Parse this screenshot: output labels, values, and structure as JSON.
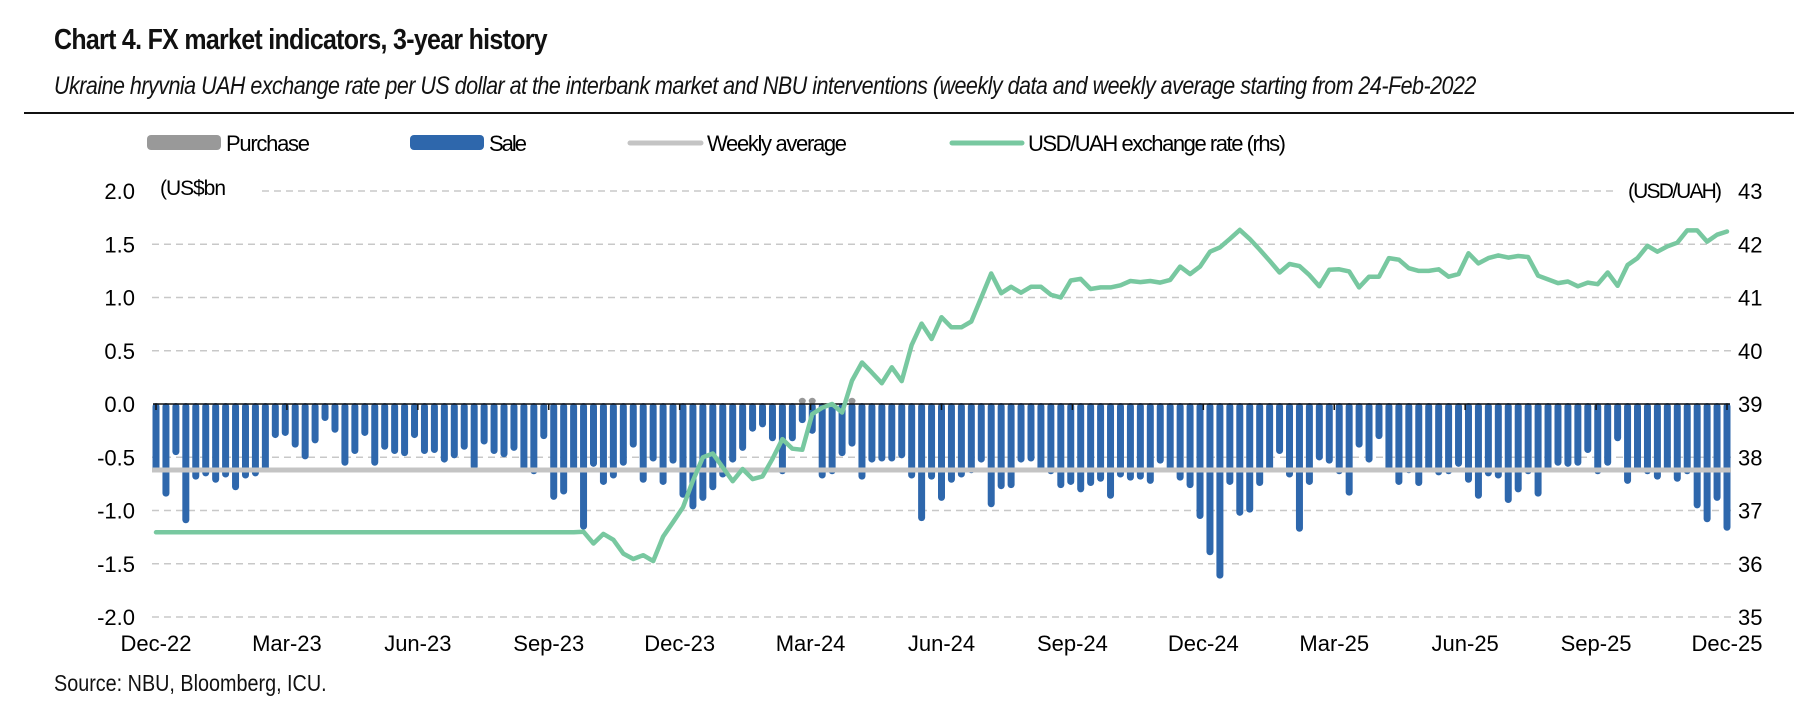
{
  "title": "Chart 4. FX market indicators, 3-year history",
  "subtitle": "Ukraine hryvnia UAH exchange rate per US dollar at the interbank market and NBU interventions (weekly data and weekly average starting from 24-Feb-2022",
  "source": "Source: NBU, Bloomberg, ICU.",
  "colors": {
    "purchase": "#999999",
    "sale": "#2E67AC",
    "weekly_average": "#C4C4C4",
    "rate": "#78C8A0",
    "grid": "#C8C8C8"
  },
  "chart_data": {
    "type": "bar",
    "title": "Chart 4. FX market indicators, 3-year history",
    "ylabel": "(US$bn",
    "y2label": "(USD/UAH)",
    "ylim": [
      -2.0,
      2.0
    ],
    "y2lim": [
      35,
      43
    ],
    "yticks": [
      "2.0",
      "1.5",
      "1.0",
      "0.5",
      "0.0",
      "-0.5",
      "-1.0",
      "-1.5",
      "-2.0"
    ],
    "y2ticks": [
      "43",
      "42",
      "41",
      "40",
      "39",
      "38",
      "37",
      "36",
      "35"
    ],
    "xtick_labels": [
      "Dec-22",
      "Mar-23",
      "Jun-23",
      "Sep-23",
      "Dec-23",
      "Mar-24",
      "Jun-24",
      "Sep-24",
      "Dec-24",
      "Mar-25",
      "Jun-25",
      "Sep-25",
      "Dec-25"
    ],
    "grid": true,
    "legend": {
      "position": "top",
      "entries": [
        "Purchase",
        "Sale",
        "Weekly average",
        "USD/UAH exchange rate (rhs)"
      ]
    },
    "weekly_average": -0.62,
    "series": [
      {
        "name": "Purchase",
        "type": "bar",
        "values_sparse": {
          "65": 0.03,
          "66": 0.03,
          "70": 0.03
        }
      },
      {
        "name": "Sale",
        "type": "bar",
        "values": [
          -0.63,
          -0.87,
          -0.48,
          -1.12,
          -0.71,
          -0.68,
          -0.74,
          -0.69,
          -0.81,
          -0.7,
          -0.68,
          -0.63,
          -0.32,
          -0.3,
          -0.41,
          -0.52,
          -0.37,
          -0.16,
          -0.27,
          -0.58,
          -0.47,
          -0.3,
          -0.58,
          -0.43,
          -0.47,
          -0.49,
          -0.32,
          -0.47,
          -0.46,
          -0.55,
          -0.51,
          -0.43,
          -0.62,
          -0.38,
          -0.47,
          -0.5,
          -0.44,
          -0.63,
          -0.66,
          -0.33,
          -0.9,
          -0.85,
          -0.63,
          -1.18,
          -0.59,
          -0.76,
          -0.7,
          -0.58,
          -0.41,
          -0.74,
          -0.54,
          -0.76,
          -0.56,
          -0.88,
          -0.99,
          -0.91,
          -0.81,
          -0.69,
          -0.55,
          -0.44,
          -0.26,
          -0.22,
          -0.35,
          -0.66,
          -0.35,
          -0.18,
          -0.28,
          -0.7,
          -0.66,
          -0.49,
          -0.4,
          -0.71,
          -0.55,
          -0.54,
          -0.54,
          -0.51,
          -0.7,
          -1.1,
          -0.71,
          -0.91,
          -0.74,
          -0.69,
          -0.65,
          -0.55,
          -0.97,
          -0.8,
          -0.79,
          -0.55,
          -0.54,
          -0.63,
          -0.66,
          -0.79,
          -0.76,
          -0.83,
          -0.77,
          -0.73,
          -0.89,
          -0.69,
          -0.72,
          -0.71,
          -0.75,
          -0.56,
          -0.63,
          -0.72,
          -0.79,
          -1.08,
          -1.42,
          -1.64,
          -0.76,
          -1.05,
          -1.02,
          -0.77,
          -0.63,
          -0.47,
          -0.69,
          -1.2,
          -0.76,
          -0.53,
          -0.56,
          -0.66,
          -0.86,
          -0.41,
          -0.55,
          -0.33,
          -0.63,
          -0.76,
          -0.65,
          -0.77,
          -0.63,
          -0.67,
          -0.66,
          -0.59,
          -0.74,
          -0.89,
          -0.68,
          -0.7,
          -0.93,
          -0.83,
          -0.66,
          -0.87,
          -0.63,
          -0.58,
          -0.59,
          -0.58,
          -0.46,
          -0.66,
          -0.58,
          -0.35,
          -0.75,
          -0.63,
          -0.66,
          -0.71,
          -0.63,
          -0.73,
          -0.66,
          -0.98,
          -1.11,
          -0.91,
          -1.19
        ]
      },
      {
        "name": "USD/UAH exchange rate (rhs)",
        "type": "line",
        "axis": "right",
        "values": [
          36.59,
          36.59,
          36.59,
          36.59,
          36.59,
          36.59,
          36.59,
          36.59,
          36.59,
          36.59,
          36.59,
          36.59,
          36.59,
          36.59,
          36.59,
          36.59,
          36.59,
          36.59,
          36.59,
          36.59,
          36.59,
          36.59,
          36.59,
          36.59,
          36.59,
          36.59,
          36.59,
          36.59,
          36.59,
          36.59,
          36.59,
          36.59,
          36.59,
          36.59,
          36.59,
          36.59,
          36.59,
          36.59,
          36.59,
          36.59,
          36.59,
          36.59,
          36.59,
          36.6,
          36.38,
          36.56,
          36.45,
          36.19,
          36.09,
          36.16,
          36.05,
          36.51,
          36.78,
          37.06,
          37.56,
          38.0,
          38.07,
          37.81,
          37.55,
          37.78,
          37.59,
          37.64,
          37.97,
          38.34,
          38.16,
          38.14,
          38.81,
          38.93,
          39.0,
          38.84,
          39.44,
          39.78,
          39.59,
          39.39,
          39.69,
          39.43,
          40.11,
          40.51,
          40.22,
          40.63,
          40.44,
          40.44,
          40.55,
          41.0,
          41.45,
          41.08,
          41.2,
          41.09,
          41.2,
          41.2,
          41.05,
          41.0,
          41.32,
          41.35,
          41.16,
          41.19,
          41.19,
          41.23,
          41.31,
          41.29,
          41.31,
          41.28,
          41.33,
          41.58,
          41.44,
          41.58,
          41.86,
          41.94,
          42.1,
          42.27,
          42.1,
          41.9,
          41.69,
          41.47,
          41.63,
          41.59,
          41.42,
          41.21,
          41.52,
          41.53,
          41.49,
          41.19,
          41.39,
          41.39,
          41.74,
          41.71,
          41.55,
          41.5,
          41.5,
          41.53,
          41.39,
          41.44,
          41.83,
          41.64,
          41.74,
          41.79,
          41.75,
          41.78,
          41.76,
          41.41,
          41.34,
          41.27,
          41.3,
          41.21,
          41.28,
          41.25,
          41.47,
          41.22,
          41.61,
          41.74,
          41.97,
          41.86,
          41.96,
          42.03,
          42.26,
          42.26,
          42.05,
          42.18,
          42.24
        ]
      }
    ]
  }
}
